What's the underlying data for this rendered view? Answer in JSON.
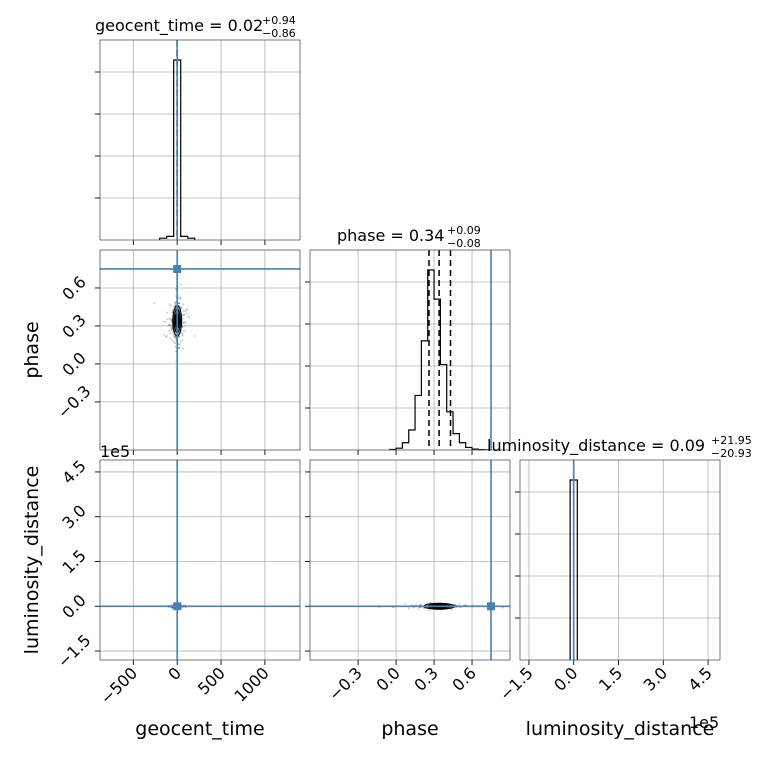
{
  "chart_data": {
    "type": "corner",
    "parameters": [
      "geocent_time",
      "phase",
      "luminosity_distance"
    ],
    "titles": [
      {
        "text": "geocent_time = 0.02",
        "sup": "+0.94",
        "sub": "−0.86"
      },
      {
        "text": "phase = 0.34",
        "sup": "+0.09",
        "sub": "−0.08"
      },
      {
        "text": "luminosity_distance = 0.09",
        "sup": "+21.95",
        "sub": "−20.93"
      }
    ],
    "axis_labels": {
      "x": [
        "geocent_time",
        "phase",
        "luminosity_distance"
      ],
      "y": [
        "phase",
        "luminosity_distance"
      ]
    },
    "ticks": {
      "geocent_time": {
        "values": [
          -500,
          0,
          500,
          1000
        ],
        "labels": [
          "−500",
          "0",
          "500",
          "1000"
        ],
        "lim": [
          -880,
          1400
        ]
      },
      "phase": {
        "values": [
          -0.3,
          0.0,
          0.3,
          0.6
        ],
        "labels": [
          "−0.3",
          "0.0",
          "0.3",
          "0.6"
        ],
        "lim": [
          -0.68,
          0.9
        ]
      },
      "luminosity_distance": {
        "values": [
          -150000,
          0,
          150000,
          300000,
          450000
        ],
        "labels": [
          "−1.5",
          "0.0",
          "1.5",
          "3.0",
          "4.5"
        ],
        "lim": [
          -180000,
          490000
        ],
        "offset": "1e5"
      }
    },
    "truths": {
      "geocent_time": 0,
      "phase": 0.75,
      "luminosity_distance": 0
    },
    "truth_color": "#4682b4",
    "quantiles": {
      "geocent_time": [
        -0.84,
        0.02,
        0.96
      ],
      "phase": [
        0.26,
        0.34,
        0.43
      ],
      "luminosity_distance": [
        -20.84,
        0.09,
        22.04
      ]
    },
    "hist_1d": {
      "geocent_time": {
        "edges": [
          -200,
          -120,
          -40,
          40,
          120,
          200
        ],
        "counts": [
          0.01,
          0.02,
          1.0,
          0.02,
          0.01
        ]
      },
      "phase": {
        "edges": [
          -0.05,
          0.0,
          0.05,
          0.1,
          0.15,
          0.2,
          0.25,
          0.3,
          0.35,
          0.4,
          0.45,
          0.5,
          0.55,
          0.6,
          0.65,
          0.7,
          0.75
        ],
        "counts": [
          0.003,
          0.01,
          0.04,
          0.11,
          0.3,
          0.6,
          0.99,
          0.83,
          0.47,
          0.21,
          0.09,
          0.04,
          0.014,
          0.005,
          0.002,
          0.001
        ]
      },
      "luminosity_distance": {
        "edges": [
          -12000,
          0,
          12000
        ],
        "counts": [
          1.0,
          1.0
        ]
      }
    },
    "scatter_2d": {
      "geocent_time_vs_phase": {
        "center": [
          0,
          0.34
        ],
        "spread": [
          25,
          0.06
        ]
      },
      "phase_vs_luminosity_distance": {
        "center": [
          0.34,
          0
        ],
        "spread": [
          0.06,
          2500
        ]
      },
      "geocent_time_vs_luminosity_distance": {
        "center": [
          0,
          0
        ],
        "spread": [
          15,
          2000
        ]
      }
    },
    "grid": true
  }
}
